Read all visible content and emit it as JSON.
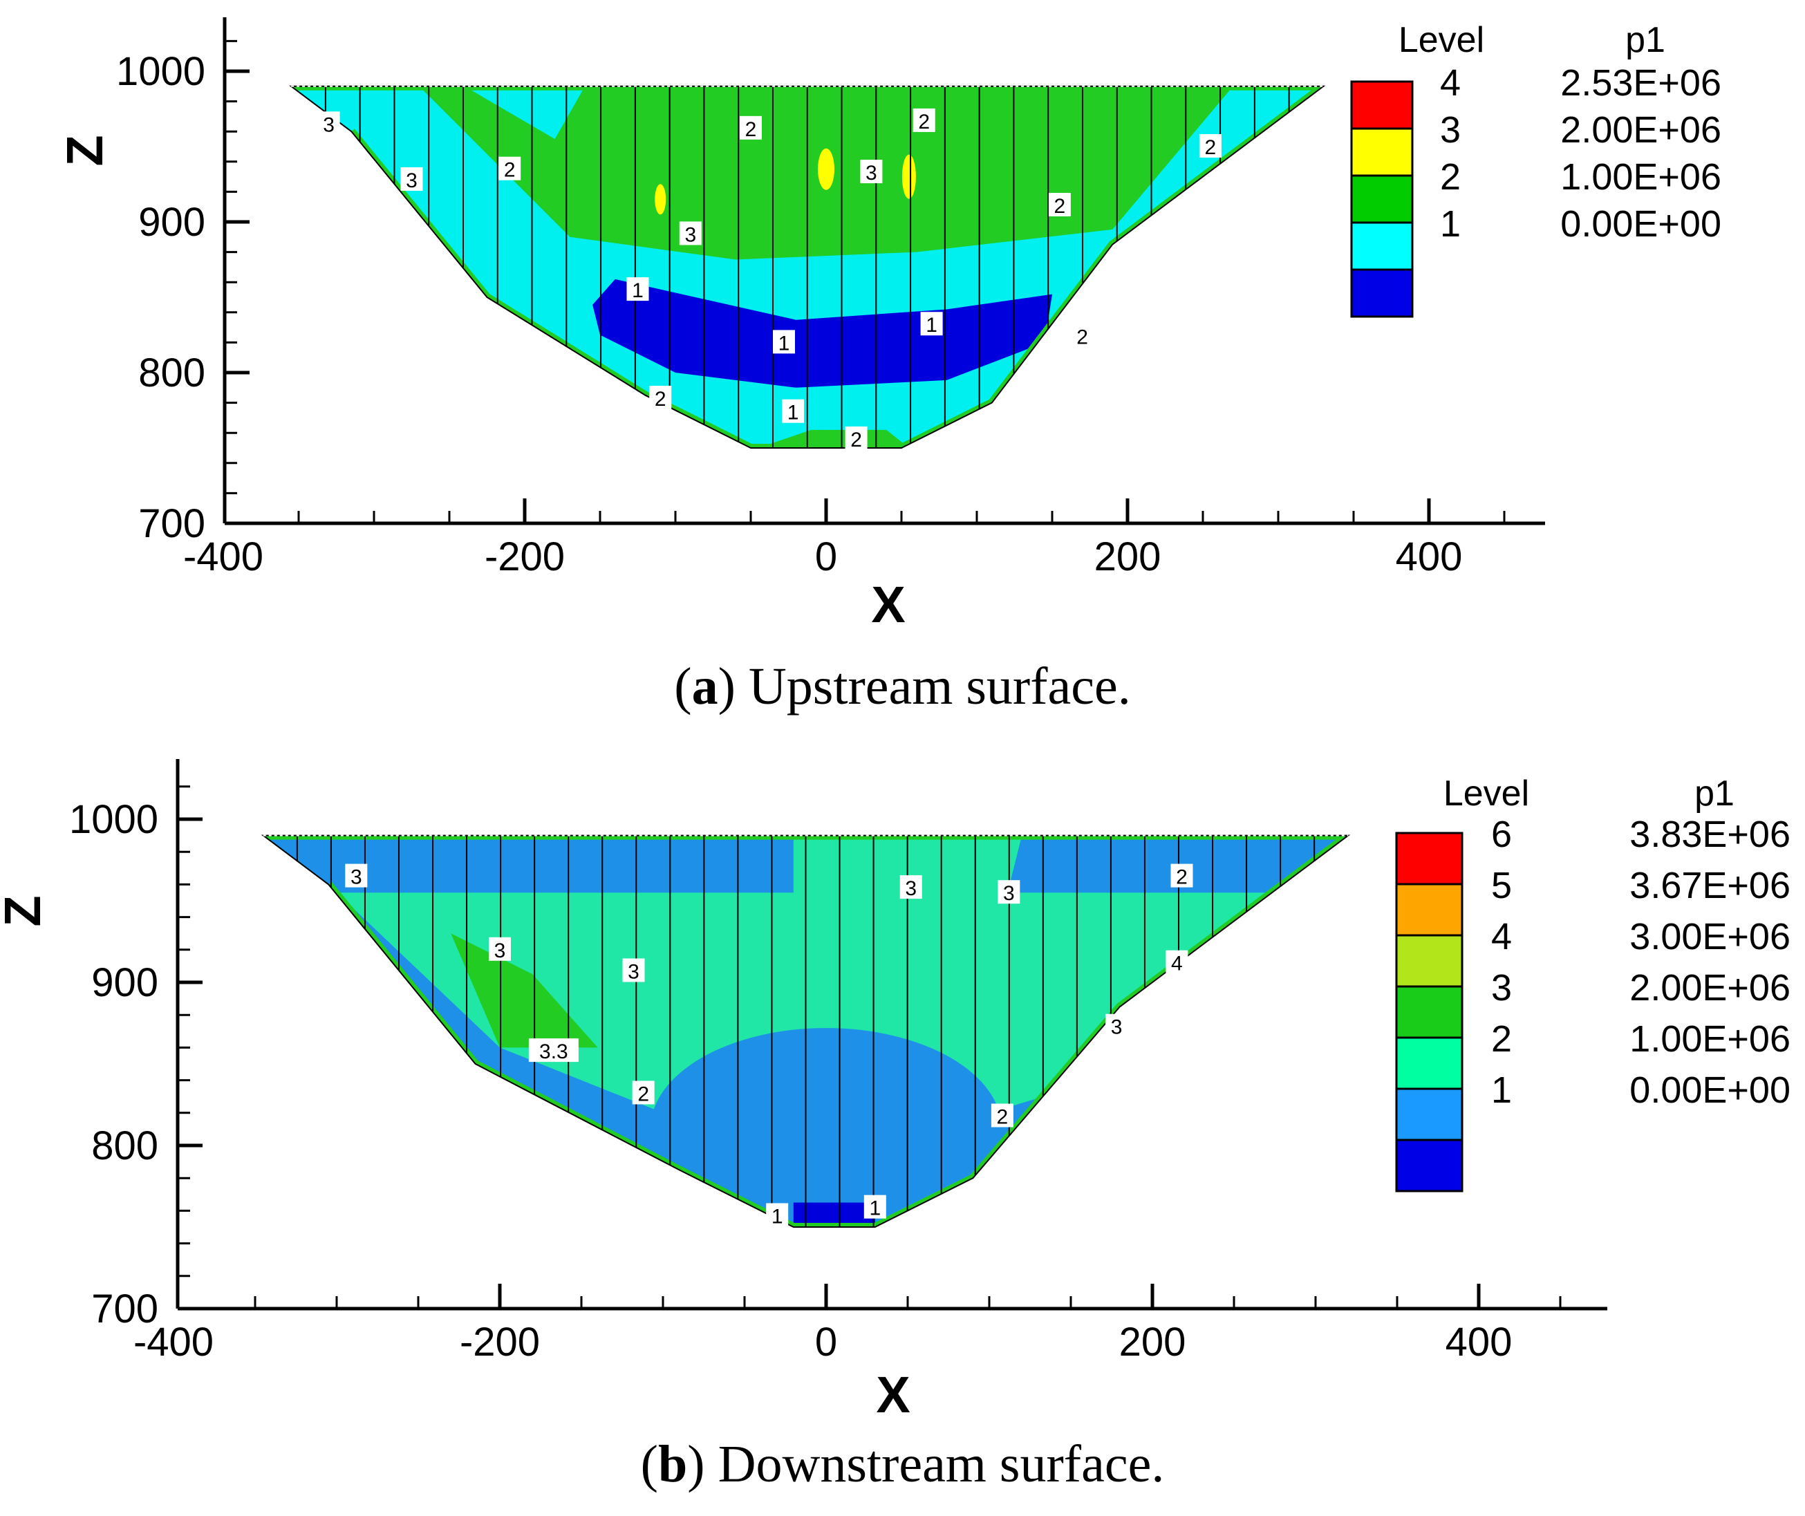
{
  "chart_data": [
    {
      "type": "contour",
      "panel": "a",
      "title": "",
      "xlabel": "X",
      "ylabel": "Z",
      "xlim": [
        -400,
        475
      ],
      "ylim": [
        700,
        1035
      ],
      "xticks": [
        -400,
        -200,
        0,
        200,
        400
      ],
      "xtick_labels": [
        "-400",
        "-200",
        "0",
        "200",
        "400"
      ],
      "yticks": [
        700,
        800,
        900,
        1000
      ],
      "ytick_labels": [
        "700",
        "800",
        "900",
        "1000"
      ],
      "variable": "p1",
      "legend_header": [
        "Level",
        "p1"
      ],
      "legend": [
        {
          "level": "4",
          "value": "2.53E+06",
          "color": "#ff0000"
        },
        {
          "level": "3",
          "value": "2.00E+06",
          "color": "#ffff00"
        },
        {
          "level": "2",
          "value": "1.00E+06",
          "color": "#00cc00"
        },
        {
          "level": "1",
          "value": "0.00E+00",
          "color": "#00ffff"
        },
        {
          "level": "",
          "value": "",
          "color": "#0000e6"
        }
      ],
      "colors": {
        "base": "#00f0f0",
        "mid": "#22cc22",
        "high": "#ffff00",
        "low": "#0000dd"
      },
      "contour_labels": [
        {
          "text": "3",
          "x": -330,
          "z": 965
        },
        {
          "text": "3",
          "x": -275,
          "z": 928
        },
        {
          "text": "2",
          "x": -210,
          "z": 935
        },
        {
          "text": "2",
          "x": -50,
          "z": 962
        },
        {
          "text": "2",
          "x": 65,
          "z": 967
        },
        {
          "text": "3",
          "x": 30,
          "z": 933
        },
        {
          "text": "3",
          "x": -90,
          "z": 892
        },
        {
          "text": "2",
          "x": 155,
          "z": 911
        },
        {
          "text": "2",
          "x": 255,
          "z": 950
        },
        {
          "text": "1",
          "x": -125,
          "z": 855
        },
        {
          "text": "1",
          "x": 70,
          "z": 832
        },
        {
          "text": "1",
          "x": -28,
          "z": 820
        },
        {
          "text": "1",
          "x": -22,
          "z": 774
        },
        {
          "text": "2",
          "x": -110,
          "z": 783
        },
        {
          "text": "2",
          "x": 20,
          "z": 756
        },
        {
          "text": "2",
          "x": 170,
          "z": 824
        }
      ],
      "caption_label": "a",
      "caption_text": ") Upstream surface."
    },
    {
      "type": "contour",
      "panel": "b",
      "title": "",
      "xlabel": "X",
      "ylabel": "Z",
      "xlim": [
        -400,
        475
      ],
      "ylim": [
        700,
        1035
      ],
      "xticks": [
        -400,
        -200,
        0,
        200,
        400
      ],
      "xtick_labels": [
        "-400",
        "-200",
        "0",
        "200",
        "400"
      ],
      "yticks": [
        700,
        800,
        900,
        1000
      ],
      "ytick_labels": [
        "700",
        "800",
        "900",
        "1000"
      ],
      "variable": "p1",
      "legend_header": [
        "Level",
        "p1"
      ],
      "legend": [
        {
          "level": "6",
          "value": "3.83E+06",
          "color": "#ff0000"
        },
        {
          "level": "5",
          "value": "3.67E+06",
          "color": "#ffa500"
        },
        {
          "level": "4",
          "value": "3.00E+06",
          "color": "#b3e61a"
        },
        {
          "level": "3",
          "value": "2.00E+06",
          "color": "#1acc1a"
        },
        {
          "level": "2",
          "value": "1.00E+06",
          "color": "#00ffa0"
        },
        {
          "level": "1",
          "value": "0.00E+00",
          "color": "#1a99ff"
        },
        {
          "level": "",
          "value": "",
          "color": "#0000e6"
        }
      ],
      "colors": {
        "base": "#1e90e8",
        "mid": "#20e6a6",
        "high": "#22cc22",
        "low": "#0000dd"
      },
      "contour_labels": [
        {
          "text": "3",
          "x": -288,
          "z": 965
        },
        {
          "text": "3",
          "x": -200,
          "z": 920
        },
        {
          "text": "3",
          "x": -118,
          "z": 907
        },
        {
          "text": "3",
          "x": 52,
          "z": 958
        },
        {
          "text": "3",
          "x": 112,
          "z": 955
        },
        {
          "text": "2",
          "x": 218,
          "z": 965
        },
        {
          "text": "4",
          "x": 215,
          "z": 912
        },
        {
          "text": "3",
          "x": 178,
          "z": 873
        },
        {
          "text": "3.3",
          "x": -167,
          "z": 858
        },
        {
          "text": "2",
          "x": -112,
          "z": 832
        },
        {
          "text": "2",
          "x": 108,
          "z": 818
        },
        {
          "text": "1",
          "x": -30,
          "z": 757
        },
        {
          "text": "1",
          "x": 30,
          "z": 762
        }
      ],
      "caption_label": "b",
      "caption_text": ") Downstream surface."
    }
  ]
}
